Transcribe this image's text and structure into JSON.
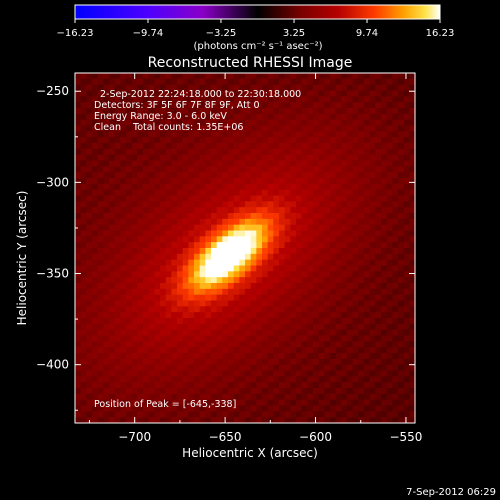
{
  "chart_data": {
    "type": "heatmap",
    "title": "Reconstructed RHESSI Image",
    "xlabel": "Heliocentric X (arcsec)",
    "ylabel": "Heliocentric Y (arcsec)",
    "xlim": [
      -733,
      -545
    ],
    "ylim": [
      -432,
      -240
    ],
    "x_ticks": [
      -700,
      -650,
      -600,
      -550
    ],
    "y_ticks": [
      -250,
      -300,
      -350,
      -400
    ],
    "x_tick_labels": [
      "−700",
      "−650",
      "−600",
      "−550"
    ],
    "y_tick_labels": [
      "−250",
      "−300",
      "−350",
      "−400"
    ],
    "colorbar": {
      "ticks": [
        -16.23,
        -9.74,
        -3.25,
        3.25,
        9.74,
        16.23
      ],
      "tick_labels": [
        "−16.23",
        "−9.74",
        "−3.25",
        "3.25",
        "9.74",
        "16.23"
      ],
      "units_label": "(photons cm⁻² s⁻¹ asec⁻²)",
      "stops": [
        {
          "v": 0.0,
          "color": "#0000ff"
        },
        {
          "v": 0.2,
          "color": "#4d00ff"
        },
        {
          "v": 0.35,
          "color": "#8a00c8"
        },
        {
          "v": 0.5,
          "color": "#000000"
        },
        {
          "v": 0.62,
          "color": "#7a0000"
        },
        {
          "v": 0.72,
          "color": "#b40000"
        },
        {
          "v": 0.82,
          "color": "#ff3a00"
        },
        {
          "v": 0.9,
          "color": "#ffa000"
        },
        {
          "v": 0.96,
          "color": "#ffe34a"
        },
        {
          "v": 1.0,
          "color": "#ffffff"
        }
      ]
    },
    "annotations": [
      "2-Sep-2012 22:24:18.000 to 22:30:18.000",
      "Detectors: 3F 5F 6F 7F 8F 9F, Att 0",
      "Energy Range: 3.0 - 6.0 keV",
      "Clean    Total counts: 1.35E+06"
    ],
    "peak_label": "Position of Peak = [-645,-338]",
    "peak": {
      "x": -645,
      "y": -338
    },
    "source": {
      "center_x": -648,
      "center_y": -340,
      "angle_deg": 40
    }
  },
  "footer": {
    "date": "7-Sep-2012 06:29"
  }
}
